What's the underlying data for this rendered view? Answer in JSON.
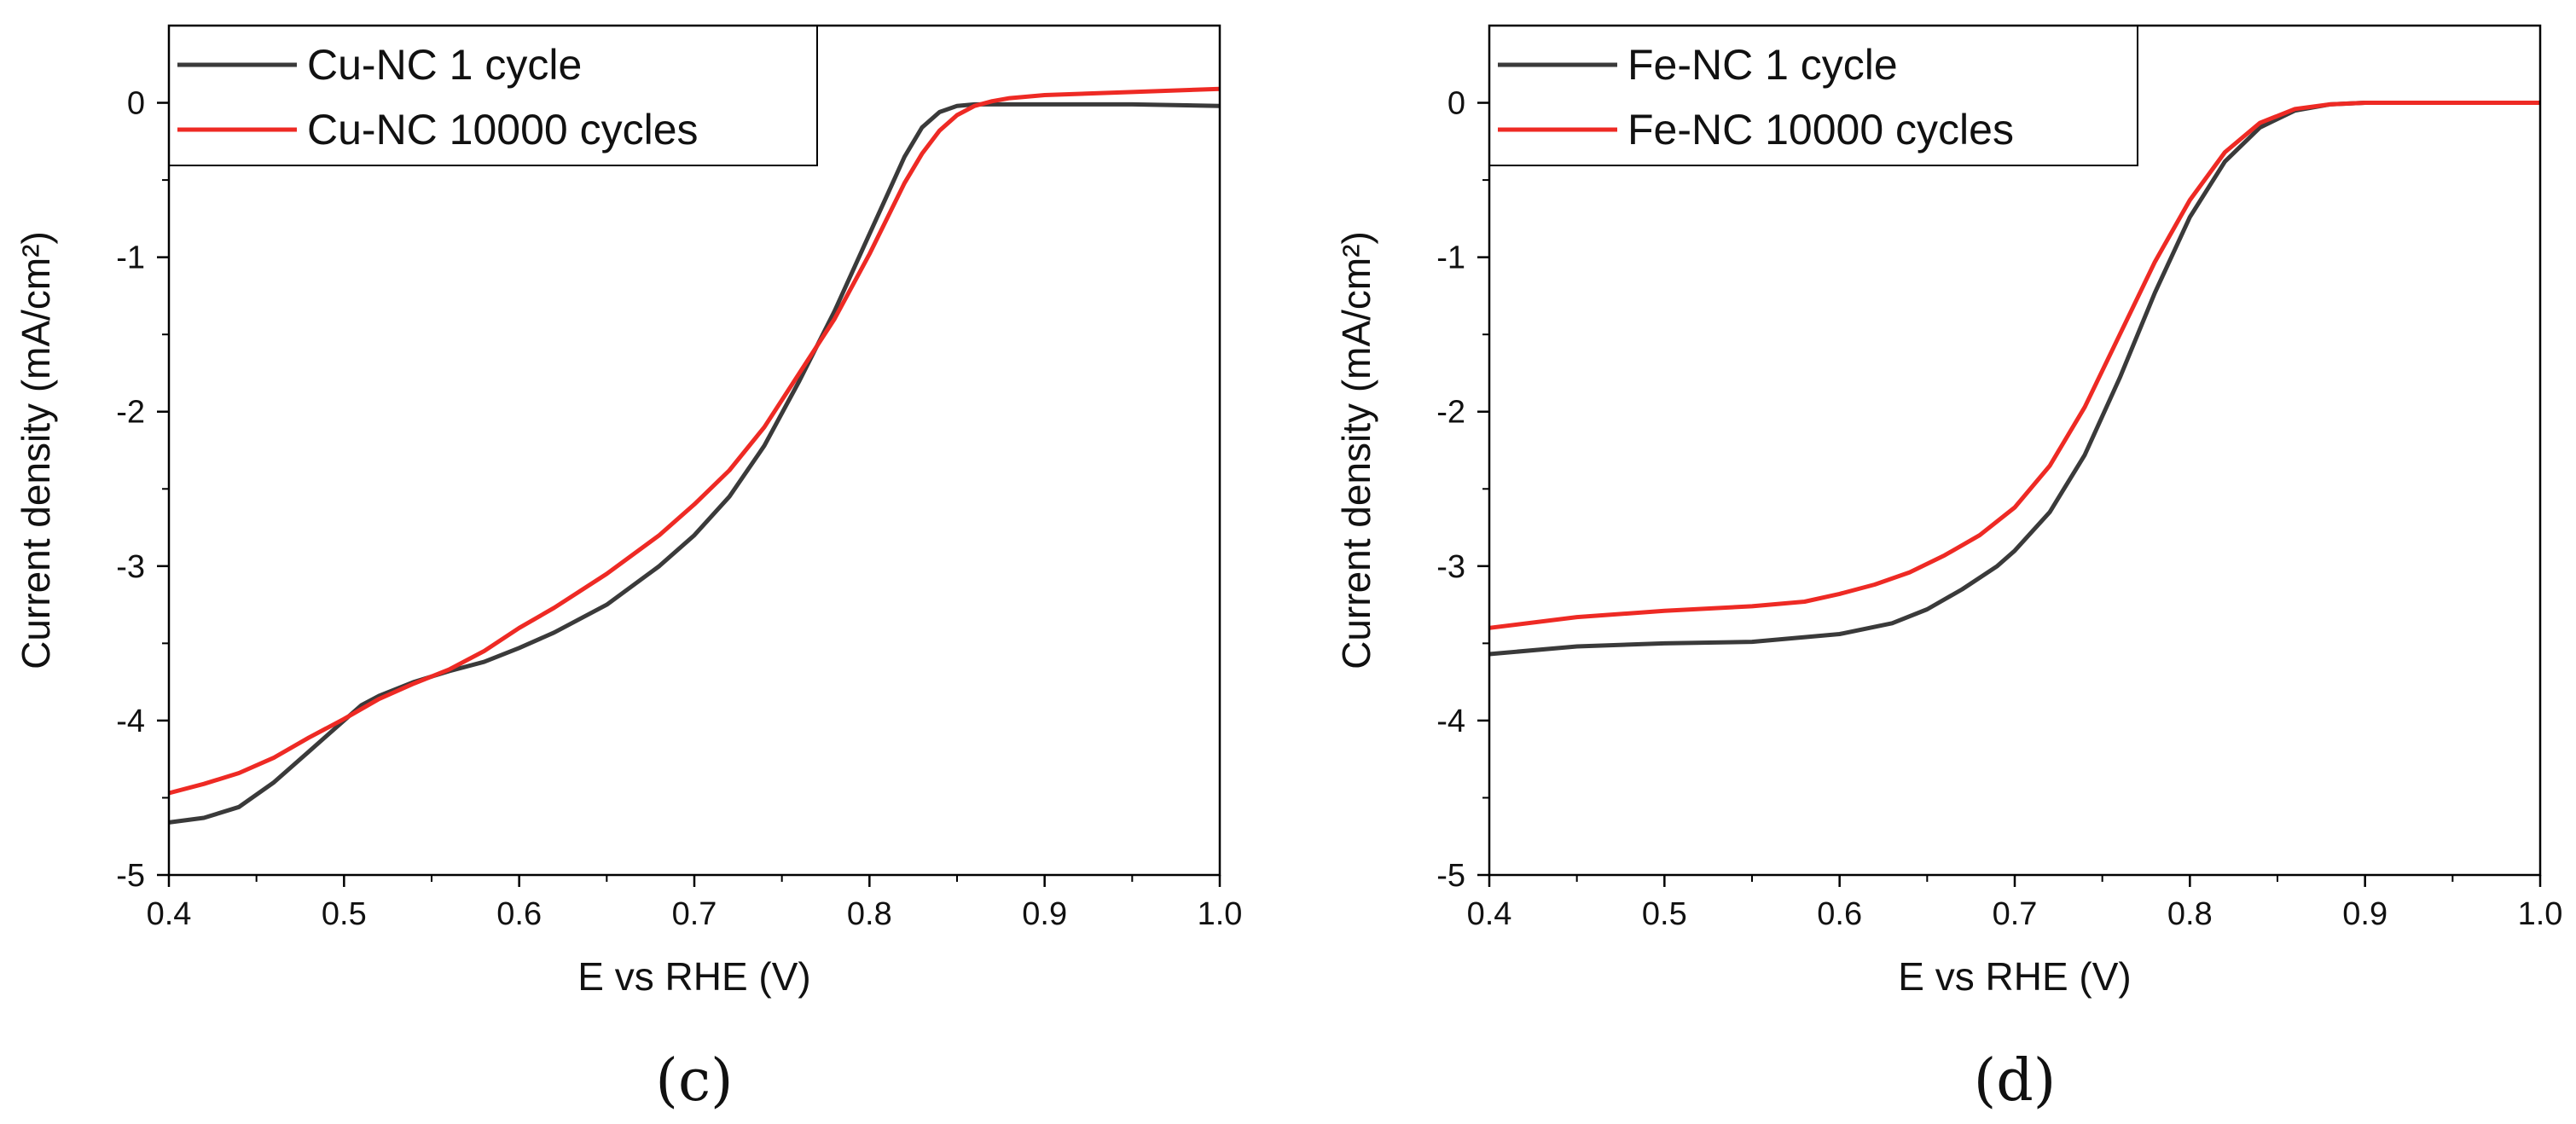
{
  "chart_data": [
    {
      "type": "line",
      "panel_label": "(c)",
      "xlabel": "E vs RHE (V)",
      "ylabel": "Current density (mA/cm²)",
      "xlim": [
        0.4,
        1.0
      ],
      "ylim": [
        -5,
        0.5
      ],
      "xticks": [
        "0.4",
        "0.5",
        "0.6",
        "0.7",
        "0.8",
        "0.9",
        "1.0"
      ],
      "yticks": [
        "0",
        "-1",
        "-2",
        "-3",
        "-4",
        "-5"
      ],
      "grid": false,
      "legend_position": "top-left",
      "series": [
        {
          "name": "Cu-NC 1 cycle",
          "color": "#3a3a3a",
          "x": [
            0.4,
            0.42,
            0.44,
            0.46,
            0.48,
            0.5,
            0.51,
            0.52,
            0.54,
            0.56,
            0.58,
            0.6,
            0.62,
            0.65,
            0.68,
            0.7,
            0.72,
            0.74,
            0.76,
            0.78,
            0.8,
            0.81,
            0.82,
            0.83,
            0.84,
            0.85,
            0.86,
            0.88,
            0.9,
            0.95,
            1.0
          ],
          "y": [
            -4.66,
            -4.63,
            -4.56,
            -4.4,
            -4.2,
            -4.0,
            -3.9,
            -3.84,
            -3.75,
            -3.68,
            -3.62,
            -3.53,
            -3.43,
            -3.25,
            -3.0,
            -2.8,
            -2.55,
            -2.22,
            -1.8,
            -1.35,
            -0.85,
            -0.6,
            -0.35,
            -0.16,
            -0.06,
            -0.02,
            -0.01,
            -0.01,
            -0.01,
            -0.01,
            -0.02
          ]
        },
        {
          "name": "Cu-NC 10000 cycles",
          "color": "#ee2a24",
          "x": [
            0.4,
            0.42,
            0.44,
            0.46,
            0.48,
            0.5,
            0.52,
            0.54,
            0.56,
            0.58,
            0.6,
            0.62,
            0.65,
            0.68,
            0.7,
            0.72,
            0.74,
            0.76,
            0.78,
            0.8,
            0.82,
            0.83,
            0.84,
            0.85,
            0.86,
            0.87,
            0.88,
            0.9,
            0.95,
            1.0
          ],
          "y": [
            -4.47,
            -4.41,
            -4.34,
            -4.24,
            -4.11,
            -3.99,
            -3.86,
            -3.76,
            -3.67,
            -3.55,
            -3.4,
            -3.27,
            -3.05,
            -2.8,
            -2.6,
            -2.38,
            -2.1,
            -1.75,
            -1.4,
            -0.98,
            -0.52,
            -0.33,
            -0.18,
            -0.08,
            -0.02,
            0.01,
            0.03,
            0.05,
            0.07,
            0.09
          ]
        }
      ]
    },
    {
      "type": "line",
      "panel_label": "(d)",
      "xlabel": "E vs RHE (V)",
      "ylabel": "Current density (mA/cm²)",
      "xlim": [
        0.4,
        1.0
      ],
      "ylim": [
        -5,
        0.5
      ],
      "xticks": [
        "0.4",
        "0.5",
        "0.6",
        "0.7",
        "0.8",
        "0.9",
        "1.0"
      ],
      "yticks": [
        "0",
        "-1",
        "-2",
        "-3",
        "-4",
        "-5"
      ],
      "grid": false,
      "legend_position": "top-left",
      "series": [
        {
          "name": "Fe-NC 1 cycle",
          "color": "#3a3a3a",
          "x": [
            0.4,
            0.45,
            0.5,
            0.55,
            0.6,
            0.63,
            0.65,
            0.67,
            0.69,
            0.7,
            0.72,
            0.74,
            0.76,
            0.78,
            0.8,
            0.82,
            0.84,
            0.86,
            0.88,
            0.9,
            0.95,
            1.0
          ],
          "y": [
            -3.57,
            -3.52,
            -3.5,
            -3.49,
            -3.44,
            -3.37,
            -3.28,
            -3.15,
            -3.0,
            -2.9,
            -2.65,
            -2.28,
            -1.78,
            -1.23,
            -0.74,
            -0.38,
            -0.16,
            -0.05,
            -0.01,
            0.0,
            0.0,
            0.0
          ]
        },
        {
          "name": "Fe-NC 10000 cycles",
          "color": "#ee2a24",
          "x": [
            0.4,
            0.45,
            0.5,
            0.55,
            0.58,
            0.6,
            0.62,
            0.64,
            0.66,
            0.68,
            0.7,
            0.72,
            0.74,
            0.76,
            0.78,
            0.8,
            0.82,
            0.84,
            0.86,
            0.88,
            0.9,
            0.95,
            1.0
          ],
          "y": [
            -3.4,
            -3.33,
            -3.29,
            -3.26,
            -3.23,
            -3.18,
            -3.12,
            -3.04,
            -2.93,
            -2.8,
            -2.62,
            -2.35,
            -1.97,
            -1.5,
            -1.03,
            -0.63,
            -0.32,
            -0.13,
            -0.04,
            -0.01,
            0.0,
            0.0,
            0.0
          ]
        }
      ]
    }
  ]
}
